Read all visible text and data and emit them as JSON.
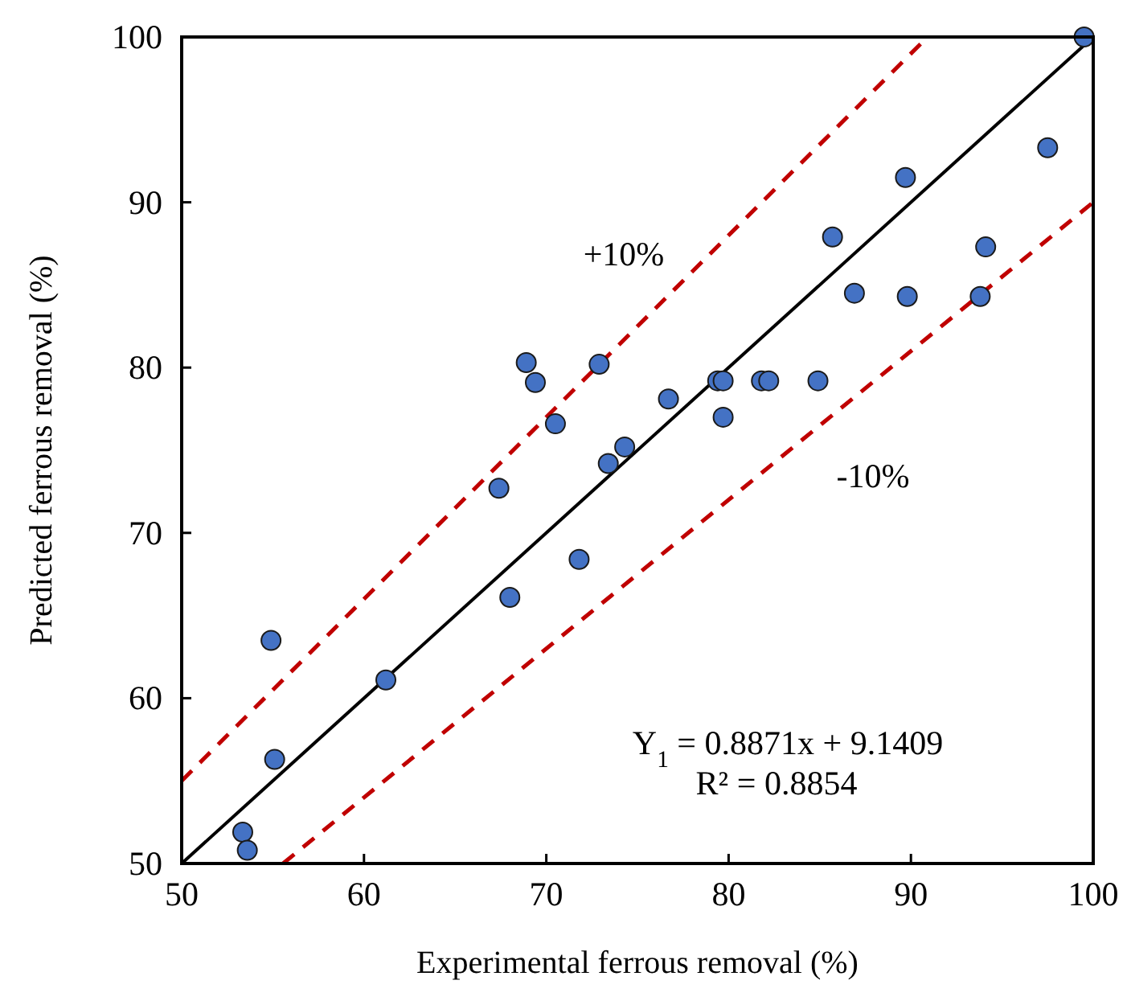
{
  "chart_data": {
    "type": "scatter",
    "xlabel": "Experimental ferrous removal (%)",
    "ylabel": "Predicted ferrous removal (%)",
    "xlim": [
      50,
      100
    ],
    "ylim": [
      50,
      100
    ],
    "xticks": [
      50,
      60,
      70,
      80,
      90,
      100
    ],
    "yticks": [
      50,
      60,
      70,
      80,
      90,
      100
    ],
    "grid": false,
    "series": [
      {
        "type": "line",
        "color": "#000000",
        "line_style": "solid",
        "x": [
          50,
          100
        ],
        "values": [
          50,
          100
        ]
      },
      {
        "type": "line",
        "color": "#c00000",
        "line_style": "dashed",
        "x": [
          50,
          90.91
        ],
        "values": [
          55,
          100
        ]
      },
      {
        "type": "line",
        "color": "#c00000",
        "line_style": "dashed",
        "x": [
          55.56,
          100
        ],
        "values": [
          50,
          90
        ]
      },
      {
        "color": "#4472c4",
        "marker": "circle",
        "x": [
          53.35,
          53.6,
          54.9,
          55.1,
          61.2,
          67.4,
          68.0,
          68.9,
          69.4,
          70.5,
          71.8,
          72.9,
          73.4,
          74.3,
          76.7,
          79.4,
          79.7,
          79.7,
          81.8,
          82.2,
          84.9,
          85.7,
          86.9,
          89.7,
          89.8,
          93.8,
          94.1,
          97.5,
          99.5
        ],
        "values": [
          51.9,
          50.8,
          63.5,
          56.3,
          61.1,
          72.7,
          66.1,
          80.3,
          79.1,
          76.6,
          68.4,
          80.2,
          74.2,
          75.2,
          78.1,
          79.2,
          79.2,
          77.0,
          79.2,
          79.2,
          79.2,
          87.9,
          84.5,
          91.5,
          84.3,
          84.3,
          87.3,
          93.3,
          100
        ]
      }
    ],
    "annotations": [
      "+10%",
      "-10%",
      "Y$_{1}$ = 0.8871x + 9.1409",
      "R² = 0.8854"
    ]
  }
}
